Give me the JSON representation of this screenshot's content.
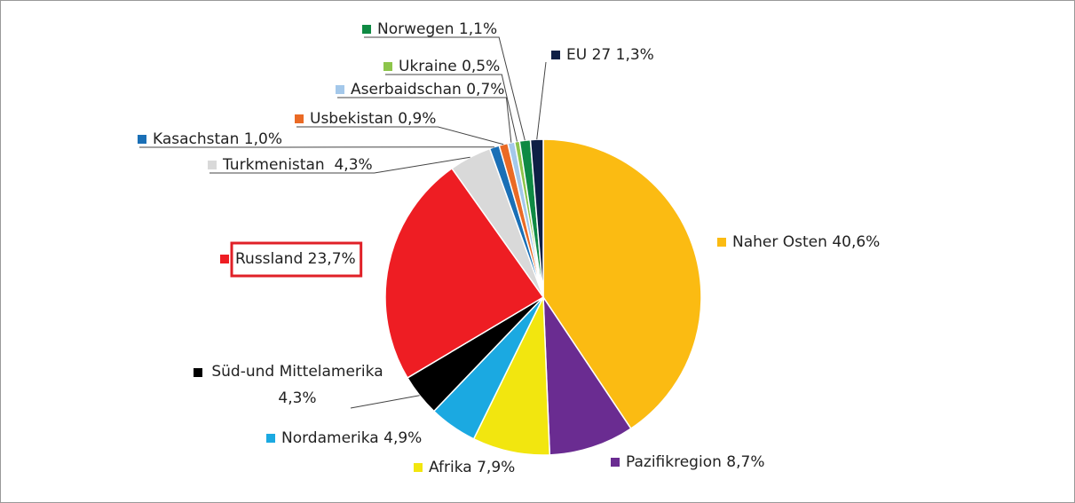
{
  "chart_data": {
    "type": "pie",
    "categories": [
      "Naher Osten",
      "Pazifikregion",
      "Afrika",
      "Nordamerika",
      "Süd-und Mittelamerika",
      "Russland",
      "Turkmenistan",
      "Kasachstan",
      "Usbekistan",
      "Aserbaidschan",
      "Ukraine",
      "Norwegen",
      "EU 27"
    ],
    "values": [
      40.6,
      8.7,
      7.9,
      4.9,
      4.3,
      23.7,
      4.3,
      1.0,
      0.9,
      0.7,
      0.5,
      1.1,
      1.3
    ],
    "value_labels": [
      "40,6%",
      "8,7%",
      "7,9%",
      "4,9%",
      "4,3%",
      "23,7%",
      "4,3%",
      "1,0%",
      "0,9%",
      "0,7%",
      "0,5%",
      "1,1%",
      "1,3%"
    ],
    "colors": [
      "#fbbb12",
      "#6a2c91",
      "#f2e60f",
      "#1ba9e1",
      "#000000",
      "#ee1d23",
      "#d9d9d9",
      "#1a6fb6",
      "#ea6a25",
      "#a4c8ea",
      "#8dc54b",
      "#0e8a43",
      "#0e1f45"
    ]
  }
}
